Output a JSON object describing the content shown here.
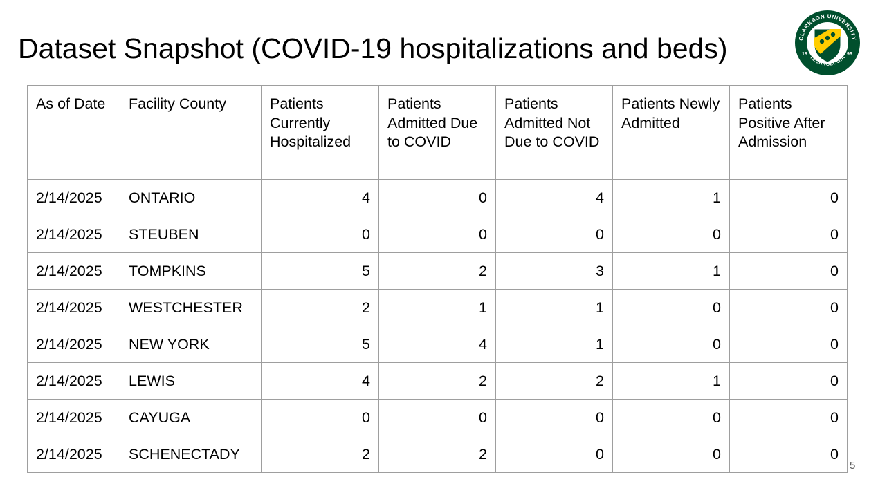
{
  "title": "Dataset Snapshot (COVID-19 hospitalizations and beds)",
  "logo": {
    "ring_text_top": "CLARKSON UNIVERSITY",
    "ring_text_bottom": "TECHNOLOGIA",
    "year_left": "18",
    "year_right": "96",
    "trademark": "TM",
    "colors": {
      "green": "#004f2d",
      "gold": "#ffcd00",
      "white": "#ffffff"
    }
  },
  "table": {
    "headers": [
      "As of Date",
      "Facility County",
      "Patients Currently Hospitalized",
      "Patients Admitted Due to COVID",
      "Patients Admitted Not Due to COVID",
      "Patients Newly Admitted",
      "Patients Positive After Admission"
    ],
    "rows": [
      [
        "2/14/2025",
        "ONTARIO",
        "4",
        "0",
        "4",
        "1",
        "0"
      ],
      [
        "2/14/2025",
        "STEUBEN",
        "0",
        "0",
        "0",
        "0",
        "0"
      ],
      [
        "2/14/2025",
        "TOMPKINS",
        "5",
        "2",
        "3",
        "1",
        "0"
      ],
      [
        "2/14/2025",
        "WESTCHESTER",
        "2",
        "1",
        "1",
        "0",
        "0"
      ],
      [
        "2/14/2025",
        "NEW YORK",
        "5",
        "4",
        "1",
        "0",
        "0"
      ],
      [
        "2/14/2025",
        "LEWIS",
        "4",
        "2",
        "2",
        "1",
        "0"
      ],
      [
        "2/14/2025",
        "CAYUGA",
        "0",
        "0",
        "0",
        "0",
        "0"
      ],
      [
        "2/14/2025",
        "SCHENECTADY",
        "2",
        "2",
        "0",
        "0",
        "0"
      ]
    ]
  },
  "page_number": "5"
}
